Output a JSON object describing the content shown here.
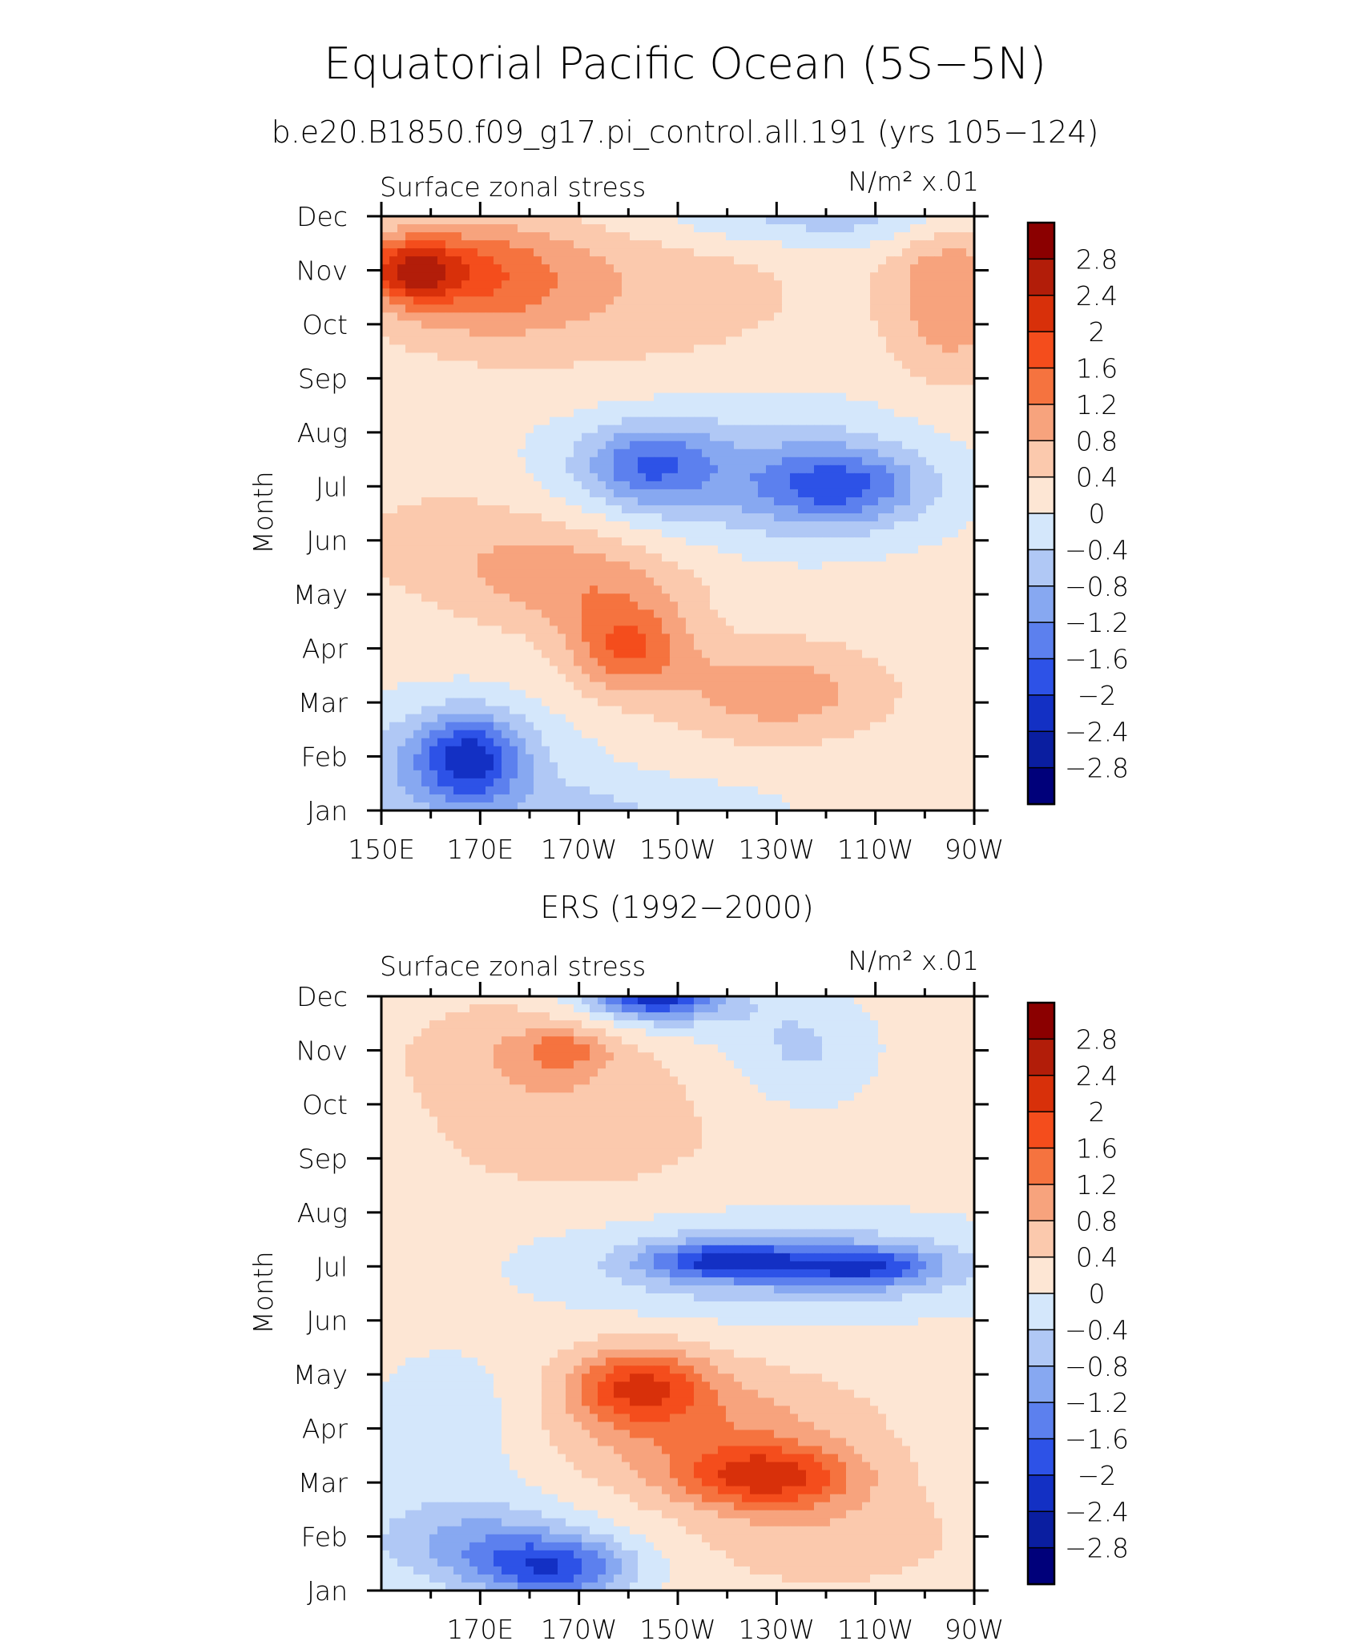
{
  "chart_data": {
    "type": "heatmap",
    "title": "Equatorial Pacific Ocean (5S−5N)",
    "colorbar": {
      "labels": [
        "2.8",
        "2.4",
        "2",
        "1.6",
        "1.2",
        "0.8",
        "0.4",
        "0",
        "−0.4",
        "−0.8",
        "−1.2",
        "−1.6",
        "−2",
        "−2.4",
        "−2.8"
      ],
      "levels": [
        2.8,
        2.4,
        2,
        1.6,
        1.2,
        0.8,
        0.4,
        0,
        -0.4,
        -0.8,
        -1.2,
        -1.6,
        -2,
        -2.4,
        -2.8
      ],
      "colors": [
        "#8b0000",
        "#b21d09",
        "#d8300a",
        "#f44d1c",
        "#f5733f",
        "#f7a37d",
        "#fbc9ad",
        "#fde6d4",
        "#d4e7fb",
        "#b0c8f5",
        "#87a8f1",
        "#5c80ee",
        "#2d52e7",
        "#1330c4",
        "#0a1ea0",
        "#00007a"
      ]
    },
    "months": [
      "Jan",
      "Feb",
      "Mar",
      "Apr",
      "May",
      "Jun",
      "Jul",
      "Aug",
      "Sep",
      "Oct",
      "Nov",
      "Dec"
    ],
    "panels": [
      {
        "subtitle": "b.e20.B1850.f09_g17.pi_control.all.191 (yrs 105−124)",
        "left_label": "Surface zonal stress",
        "right_label": "N/m² x.01",
        "ylabel": "Month",
        "xlim": [
          150,
          270
        ],
        "xtick_labels": [
          "150E",
          "170E",
          "170W",
          "150W",
          "130W",
          "110W",
          "90W"
        ],
        "blobs": [
          {
            "lon": 156,
            "month": 10.0,
            "sx": 10,
            "sy": 0.6,
            "amp": 1.8
          },
          {
            "lon": 170,
            "month": 9.9,
            "sx": 18,
            "sy": 1.0,
            "amp": 1.0
          },
          {
            "lon": 193,
            "month": 9.7,
            "sx": 42,
            "sy": 1.6,
            "amp": 0.6
          },
          {
            "lon": 265,
            "month": 9.6,
            "sx": 12,
            "sy": 1.6,
            "amp": 1.0
          },
          {
            "lon": 240,
            "month": 11.0,
            "sx": 40,
            "sy": 0.6,
            "amp": -0.8
          },
          {
            "lon": 204,
            "month": 6.4,
            "sx": 13,
            "sy": 0.7,
            "amp": -1.2
          },
          {
            "lon": 243,
            "month": 6.0,
            "sx": 16,
            "sy": 0.7,
            "amp": -1.4
          },
          {
            "lon": 222,
            "month": 6.2,
            "sx": 38,
            "sy": 1.3,
            "amp": -0.9
          },
          {
            "lon": 200,
            "month": 3.0,
            "sx": 12,
            "sy": 0.8,
            "amp": 1.4
          },
          {
            "lon": 192,
            "month": 4.2,
            "sx": 22,
            "sy": 0.9,
            "amp": 0.8
          },
          {
            "lon": 230,
            "month": 2.2,
            "sx": 22,
            "sy": 0.9,
            "amp": 0.9
          },
          {
            "lon": 170,
            "month": 5.0,
            "sx": 28,
            "sy": 1.2,
            "amp": 0.5
          },
          {
            "lon": 168,
            "month": 1.0,
            "sx": 10,
            "sy": 0.8,
            "amp": -1.7
          },
          {
            "lon": 162,
            "month": 0.7,
            "sx": 26,
            "sy": 1.2,
            "amp": -0.9
          },
          {
            "lon": 200,
            "month": 0.0,
            "sx": 30,
            "sy": 0.6,
            "amp": -0.5
          }
        ]
      },
      {
        "subtitle": "ERS (1992−2000)",
        "left_label": "Surface zonal stress",
        "right_label": "N/m² x.01",
        "ylabel": "Month",
        "xlim": [
          150,
          270
        ],
        "xtick_labels": [
          "170E",
          "170W",
          "150W",
          "130W",
          "110W",
          "90W"
        ],
        "blobs": [
          {
            "lon": 205,
            "month": 11.0,
            "sx": 12,
            "sy": 0.35,
            "amp": -1.9
          },
          {
            "lon": 207,
            "month": 10.8,
            "sx": 20,
            "sy": 0.6,
            "amp": -0.7
          },
          {
            "lon": 235,
            "month": 10.0,
            "sx": 14,
            "sy": 1.0,
            "amp": -0.6
          },
          {
            "lon": 180,
            "month": 10.0,
            "sx": 25,
            "sy": 1.0,
            "amp": 0.6
          },
          {
            "lon": 187,
            "month": 10.0,
            "sx": 8,
            "sy": 0.35,
            "amp": 0.8
          },
          {
            "lon": 190,
            "month": 8.5,
            "sx": 30,
            "sy": 1.2,
            "amp": 0.5
          },
          {
            "lon": 220,
            "month": 6.1,
            "sx": 16,
            "sy": 0.35,
            "amp": -1.6
          },
          {
            "lon": 248,
            "month": 6.0,
            "sx": 14,
            "sy": 0.35,
            "amp": -1.5
          },
          {
            "lon": 232,
            "month": 6.0,
            "sx": 42,
            "sy": 0.85,
            "amp": -1.0
          },
          {
            "lon": 202,
            "month": 3.8,
            "sx": 14,
            "sy": 0.7,
            "amp": 1.6
          },
          {
            "lon": 228,
            "month": 2.1,
            "sx": 18,
            "sy": 0.6,
            "amp": 1.7
          },
          {
            "lon": 215,
            "month": 3.0,
            "sx": 32,
            "sy": 1.1,
            "amp": 0.9
          },
          {
            "lon": 240,
            "month": 1.0,
            "sx": 28,
            "sy": 1.0,
            "amp": 0.5
          },
          {
            "lon": 185,
            "month": 0.4,
            "sx": 16,
            "sy": 0.6,
            "amp": -1.8
          },
          {
            "lon": 168,
            "month": 0.9,
            "sx": 22,
            "sy": 0.8,
            "amp": -1.0
          },
          {
            "lon": 165,
            "month": 3.0,
            "sx": 18,
            "sy": 1.4,
            "amp": -0.45
          }
        ]
      }
    ]
  }
}
